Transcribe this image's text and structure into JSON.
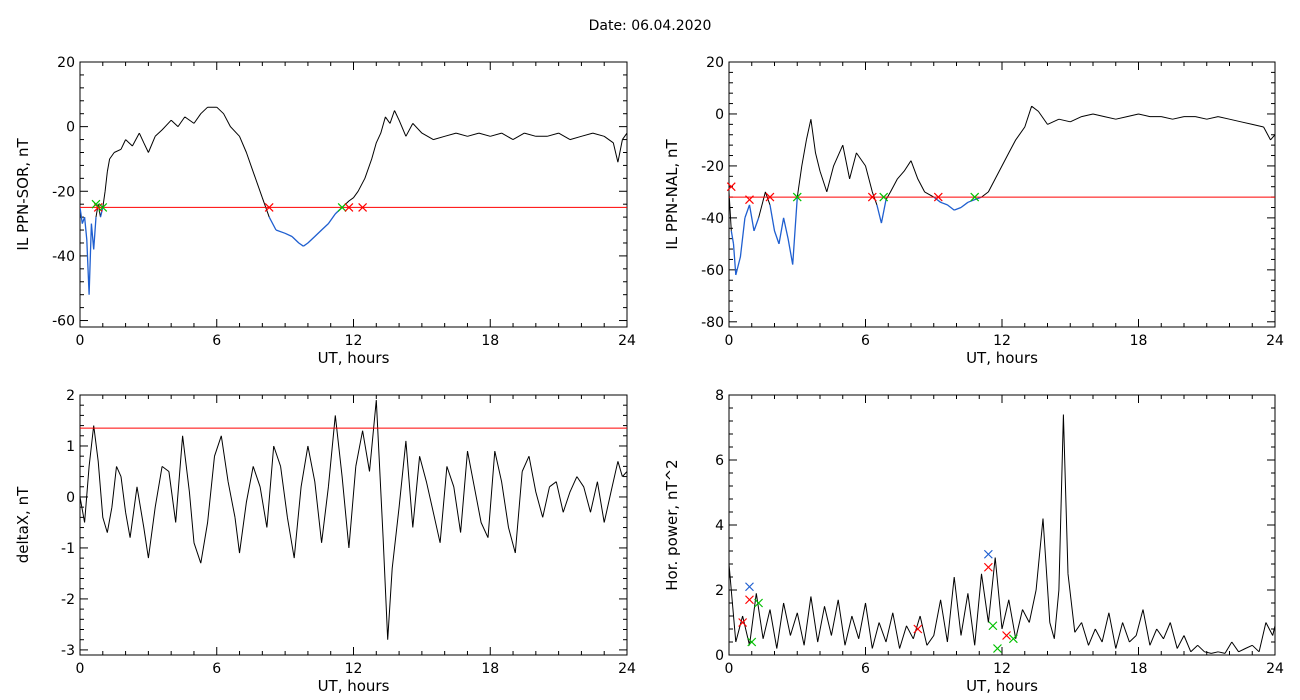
{
  "header": {
    "date_label": "Date:  06.04.2020"
  },
  "colors": {
    "trace": "#000000",
    "below_threshold": "#1f5fd0",
    "threshold": "#ff0000",
    "marker_red": "#ff0000",
    "marker_green": "#00c000",
    "marker_blue": "#1f5fd0"
  },
  "chart_data": [
    {
      "type": "line",
      "ylabel": "IL PPN-SOR, nT",
      "xlabel": "UT, hours",
      "xlim": [
        0,
        24
      ],
      "ylim": [
        -62,
        20
      ],
      "xticks": [
        0,
        6,
        12,
        18,
        24
      ],
      "yticks": [
        -60,
        -40,
        -20,
        0,
        20
      ],
      "threshold": -25,
      "series": [
        {
          "x": [
            0,
            0.1,
            0.2,
            0.3,
            0.4,
            0.5,
            0.6,
            0.7,
            0.8,
            0.9,
            1.0,
            1.1,
            1.2,
            1.3,
            1.5,
            1.8,
            2.0,
            2.3,
            2.6,
            2.8,
            3.0,
            3.3,
            3.6,
            4.0,
            4.3,
            4.6,
            5.0,
            5.3,
            5.6,
            6.0,
            6.3,
            6.6,
            7.0,
            7.3,
            7.6,
            8.0,
            8.3,
            8.6,
            9.0,
            9.3,
            9.6,
            9.8,
            10.0,
            10.3,
            10.6,
            10.9,
            11.2,
            11.5,
            11.8,
            12.0,
            12.2,
            12.5,
            12.8,
            13.0,
            13.2,
            13.4,
            13.6,
            13.8,
            14.0,
            14.3,
            14.6,
            15.0,
            15.5,
            16.0,
            16.5,
            17.0,
            17.5,
            18.0,
            18.5,
            19.0,
            19.5,
            20.0,
            20.5,
            21.0,
            21.5,
            22.0,
            22.5,
            23.0,
            23.4,
            23.6,
            23.8,
            24.0
          ],
          "y": [
            -25,
            -30,
            -28,
            -35,
            -52,
            -30,
            -38,
            -28,
            -24,
            -28,
            -25,
            -20,
            -14,
            -10,
            -8,
            -7,
            -4,
            -6,
            -2,
            -5,
            -8,
            -3,
            -1,
            2,
            0,
            3,
            1,
            4,
            6,
            6,
            4,
            0,
            -3,
            -8,
            -14,
            -22,
            -28,
            -32,
            -33,
            -34,
            -36,
            -37,
            -36,
            -34,
            -32,
            -30,
            -27,
            -25,
            -23,
            -22,
            -20,
            -16,
            -10,
            -5,
            -2,
            3,
            1,
            5,
            2,
            -3,
            1,
            -2,
            -4,
            -3,
            -2,
            -3,
            -2,
            -3,
            -2,
            -4,
            -2,
            -3,
            -3,
            -2,
            -4,
            -3,
            -2,
            -3,
            -5,
            -11,
            -4,
            -2
          ]
        }
      ],
      "markers": [
        {
          "x": 0.8,
          "y": -25,
          "color": "red"
        },
        {
          "x": 0.7,
          "y": -24,
          "color": "green"
        },
        {
          "x": 1.0,
          "y": -25,
          "color": "green"
        },
        {
          "x": 8.3,
          "y": -25,
          "color": "red"
        },
        {
          "x": 11.5,
          "y": -25,
          "color": "green"
        },
        {
          "x": 11.8,
          "y": -25,
          "color": "red"
        },
        {
          "x": 12.4,
          "y": -25,
          "color": "red"
        }
      ]
    },
    {
      "type": "line",
      "ylabel": "IL PPN-NAL, nT",
      "xlabel": "UT, hours",
      "xlim": [
        0,
        24
      ],
      "ylim": [
        -82,
        20
      ],
      "xticks": [
        0,
        6,
        12,
        18,
        24
      ],
      "yticks": [
        -80,
        -60,
        -40,
        -20,
        0,
        20
      ],
      "threshold": -32,
      "series": [
        {
          "x": [
            0,
            0.1,
            0.2,
            0.3,
            0.5,
            0.7,
            0.9,
            1.1,
            1.3,
            1.6,
            1.8,
            2.0,
            2.2,
            2.4,
            2.6,
            2.8,
            3.0,
            3.2,
            3.4,
            3.6,
            3.8,
            4.0,
            4.3,
            4.6,
            5.0,
            5.3,
            5.6,
            6.0,
            6.3,
            6.5,
            6.7,
            6.9,
            7.1,
            7.4,
            7.7,
            8.0,
            8.3,
            8.6,
            9.0,
            9.3,
            9.6,
            9.9,
            10.2,
            10.5,
            10.8,
            11.1,
            11.4,
            11.7,
            12.0,
            12.3,
            12.6,
            13.0,
            13.3,
            13.6,
            14.0,
            14.5,
            15.0,
            15.5,
            16.0,
            16.5,
            17.0,
            17.5,
            18.0,
            18.5,
            19.0,
            19.5,
            20.0,
            20.5,
            21.0,
            21.5,
            22.0,
            22.5,
            23.0,
            23.5,
            23.8,
            24.0
          ],
          "y": [
            -30,
            -45,
            -50,
            -62,
            -55,
            -40,
            -35,
            -45,
            -40,
            -30,
            -35,
            -45,
            -50,
            -40,
            -48,
            -58,
            -32,
            -20,
            -10,
            -2,
            -15,
            -22,
            -30,
            -20,
            -12,
            -25,
            -15,
            -20,
            -30,
            -35,
            -42,
            -33,
            -30,
            -25,
            -22,
            -18,
            -25,
            -30,
            -32,
            -34,
            -35,
            -37,
            -36,
            -34,
            -33,
            -32,
            -30,
            -25,
            -20,
            -15,
            -10,
            -5,
            3,
            1,
            -4,
            -2,
            -3,
            -1,
            0,
            -1,
            -2,
            -1,
            0,
            -1,
            -1,
            -2,
            -1,
            -1,
            -2,
            -1,
            -2,
            -3,
            -4,
            -5,
            -10,
            -8
          ]
        }
      ],
      "markers": [
        {
          "x": 0.1,
          "y": -28,
          "color": "red"
        },
        {
          "x": 0.9,
          "y": -33,
          "color": "red"
        },
        {
          "x": 1.8,
          "y": -32,
          "color": "red"
        },
        {
          "x": 3.0,
          "y": -32,
          "color": "green"
        },
        {
          "x": 6.3,
          "y": -32,
          "color": "red"
        },
        {
          "x": 6.8,
          "y": -32,
          "color": "green"
        },
        {
          "x": 9.2,
          "y": -32,
          "color": "red"
        },
        {
          "x": 10.8,
          "y": -32,
          "color": "green"
        }
      ]
    },
    {
      "type": "line",
      "ylabel": "deltaX, nT",
      "xlabel": "UT, hours",
      "xlim": [
        0,
        24
      ],
      "ylim": [
        -3.1,
        2.0
      ],
      "xticks": [
        0,
        6,
        12,
        18,
        24
      ],
      "yticks": [
        -3,
        -2,
        -1,
        0,
        1,
        2
      ],
      "threshold": 1.35,
      "series": [
        {
          "x": [
            0,
            0.2,
            0.4,
            0.6,
            0.8,
            1.0,
            1.2,
            1.4,
            1.6,
            1.8,
            2.0,
            2.2,
            2.5,
            2.8,
            3.0,
            3.3,
            3.6,
            3.9,
            4.2,
            4.5,
            4.8,
            5.0,
            5.3,
            5.6,
            5.9,
            6.2,
            6.5,
            6.8,
            7.0,
            7.3,
            7.6,
            7.9,
            8.2,
            8.5,
            8.8,
            9.1,
            9.4,
            9.7,
            10.0,
            10.3,
            10.6,
            10.9,
            11.2,
            11.5,
            11.8,
            12.1,
            12.4,
            12.7,
            13.0,
            13.3,
            13.5,
            13.7,
            14.0,
            14.3,
            14.6,
            14.9,
            15.2,
            15.5,
            15.8,
            16.1,
            16.4,
            16.7,
            17.0,
            17.3,
            17.6,
            17.9,
            18.2,
            18.5,
            18.8,
            19.1,
            19.4,
            19.7,
            20.0,
            20.3,
            20.6,
            20.9,
            21.2,
            21.5,
            21.8,
            22.1,
            22.4,
            22.7,
            23.0,
            23.3,
            23.6,
            23.8,
            24.0
          ],
          "y": [
            0,
            -0.5,
            0.6,
            1.4,
            0.7,
            -0.4,
            -0.7,
            -0.2,
            0.6,
            0.4,
            -0.3,
            -0.8,
            0.2,
            -0.6,
            -1.2,
            -0.2,
            0.6,
            0.5,
            -0.5,
            1.2,
            0.1,
            -0.9,
            -1.3,
            -0.5,
            0.8,
            1.2,
            0.3,
            -0.4,
            -1.1,
            -0.1,
            0.6,
            0.2,
            -0.6,
            1.0,
            0.6,
            -0.4,
            -1.2,
            0.2,
            1.0,
            0.3,
            -0.9,
            0.2,
            1.6,
            0.4,
            -1.0,
            0.6,
            1.3,
            0.5,
            1.9,
            -0.8,
            -2.8,
            -1.4,
            -0.2,
            1.1,
            -0.6,
            0.8,
            0.3,
            -0.3,
            -0.9,
            0.6,
            0.2,
            -0.7,
            0.9,
            0.2,
            -0.5,
            -0.8,
            0.9,
            0.3,
            -0.6,
            -1.1,
            0.5,
            0.8,
            0.1,
            -0.4,
            0.2,
            0.3,
            -0.3,
            0.1,
            0.4,
            0.2,
            -0.3,
            0.3,
            -0.5,
            0.1,
            0.7,
            0.4,
            0.5
          ]
        }
      ],
      "markers": []
    },
    {
      "type": "line",
      "ylabel": "Hor. power, nT^2",
      "xlabel": "UT, hours",
      "xlim": [
        0,
        24
      ],
      "ylim": [
        0,
        8
      ],
      "xticks": [
        0,
        6,
        12,
        18,
        24
      ],
      "yticks": [
        0,
        2,
        4,
        6,
        8
      ],
      "threshold": null,
      "series": [
        {
          "x": [
            0,
            0.3,
            0.6,
            0.9,
            1.2,
            1.5,
            1.8,
            2.1,
            2.4,
            2.7,
            3.0,
            3.3,
            3.6,
            3.9,
            4.2,
            4.5,
            4.8,
            5.1,
            5.4,
            5.7,
            6.0,
            6.3,
            6.6,
            6.9,
            7.2,
            7.5,
            7.8,
            8.1,
            8.4,
            8.7,
            9.0,
            9.3,
            9.6,
            9.9,
            10.2,
            10.5,
            10.8,
            11.1,
            11.4,
            11.7,
            12.0,
            12.3,
            12.6,
            12.9,
            13.2,
            13.5,
            13.8,
            14.1,
            14.3,
            14.5,
            14.7,
            14.9,
            15.2,
            15.5,
            15.8,
            16.1,
            16.4,
            16.7,
            17.0,
            17.3,
            17.6,
            17.9,
            18.2,
            18.5,
            18.8,
            19.1,
            19.4,
            19.7,
            20.0,
            20.3,
            20.6,
            20.9,
            21.2,
            21.5,
            21.8,
            22.1,
            22.4,
            22.7,
            23.0,
            23.3,
            23.6,
            23.9,
            24.0
          ],
          "y": [
            2.8,
            0.4,
            1.2,
            0.3,
            1.9,
            0.5,
            1.4,
            0.2,
            1.6,
            0.6,
            1.3,
            0.3,
            1.8,
            0.4,
            1.5,
            0.6,
            1.7,
            0.3,
            1.2,
            0.5,
            1.6,
            0.2,
            1.0,
            0.4,
            1.3,
            0.2,
            0.9,
            0.5,
            1.2,
            0.3,
            0.6,
            1.7,
            0.4,
            2.4,
            0.6,
            1.9,
            0.3,
            2.5,
            1.0,
            3.0,
            0.8,
            1.7,
            0.5,
            1.4,
            1.0,
            2.0,
            4.2,
            1.0,
            0.5,
            2.0,
            7.4,
            2.5,
            0.7,
            1.0,
            0.3,
            0.8,
            0.4,
            1.3,
            0.2,
            1.0,
            0.4,
            0.6,
            1.4,
            0.3,
            0.8,
            0.5,
            1.0,
            0.2,
            0.6,
            0.1,
            0.3,
            0.1,
            0.05,
            0.1,
            0.05,
            0.4,
            0.1,
            0.2,
            0.3,
            0.1,
            1.0,
            0.6,
            0.9
          ]
        }
      ],
      "markers": [
        {
          "x": 0.6,
          "y": 1.0,
          "color": "red"
        },
        {
          "x": 0.9,
          "y": 1.7,
          "color": "red"
        },
        {
          "x": 0.9,
          "y": 2.1,
          "color": "blue"
        },
        {
          "x": 1.3,
          "y": 1.6,
          "color": "green"
        },
        {
          "x": 1.0,
          "y": 0.4,
          "color": "green"
        },
        {
          "x": 8.3,
          "y": 0.8,
          "color": "red"
        },
        {
          "x": 11.4,
          "y": 3.1,
          "color": "blue"
        },
        {
          "x": 11.4,
          "y": 2.7,
          "color": "red"
        },
        {
          "x": 11.6,
          "y": 0.9,
          "color": "green"
        },
        {
          "x": 11.8,
          "y": 0.2,
          "color": "green"
        },
        {
          "x": 12.2,
          "y": 0.6,
          "color": "red"
        },
        {
          "x": 12.5,
          "y": 0.5,
          "color": "green"
        }
      ]
    }
  ]
}
